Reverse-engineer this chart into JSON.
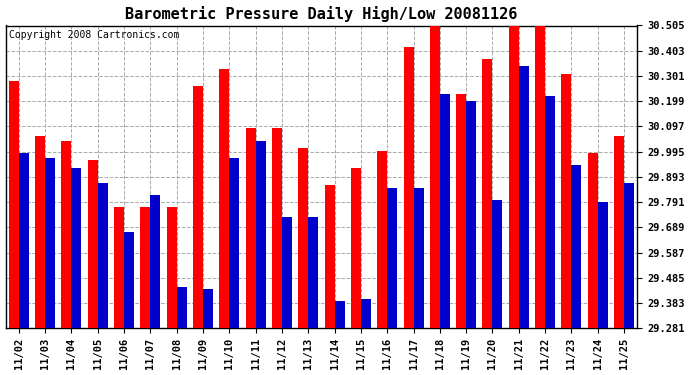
{
  "title": "Barometric Pressure Daily High/Low 20081126",
  "copyright": "Copyright 2008 Cartronics.com",
  "dates": [
    "11/02",
    "11/03",
    "11/04",
    "11/05",
    "11/06",
    "11/07",
    "11/08",
    "11/09",
    "11/10",
    "11/11",
    "11/12",
    "11/13",
    "11/14",
    "11/15",
    "11/16",
    "11/17",
    "11/18",
    "11/19",
    "11/20",
    "11/21",
    "11/22",
    "11/23",
    "11/24",
    "11/25"
  ],
  "highs": [
    30.28,
    30.06,
    30.04,
    29.96,
    29.77,
    29.77,
    29.77,
    30.26,
    30.33,
    30.09,
    30.09,
    30.01,
    29.86,
    29.93,
    30.0,
    30.42,
    30.52,
    30.23,
    30.37,
    30.52,
    30.52,
    30.31,
    29.99,
    30.06
  ],
  "lows": [
    29.99,
    29.97,
    29.93,
    29.87,
    29.67,
    29.82,
    29.45,
    29.44,
    29.97,
    30.04,
    29.73,
    29.73,
    29.39,
    29.4,
    29.85,
    29.85,
    30.23,
    30.2,
    29.8,
    30.34,
    30.22,
    29.94,
    29.79,
    29.87
  ],
  "high_color": "#ff0000",
  "low_color": "#0000cc",
  "bg_color": "#ffffff",
  "plot_bg_color": "#ffffff",
  "grid_color": "#aaaaaa",
  "yticks": [
    29.281,
    29.383,
    29.485,
    29.587,
    29.689,
    29.791,
    29.893,
    29.995,
    30.097,
    30.199,
    30.301,
    30.403,
    30.505
  ],
  "ymin": 29.281,
  "ymax": 30.505,
  "bar_width": 0.38,
  "title_fontsize": 11,
  "tick_fontsize": 7.5,
  "copyright_fontsize": 7
}
